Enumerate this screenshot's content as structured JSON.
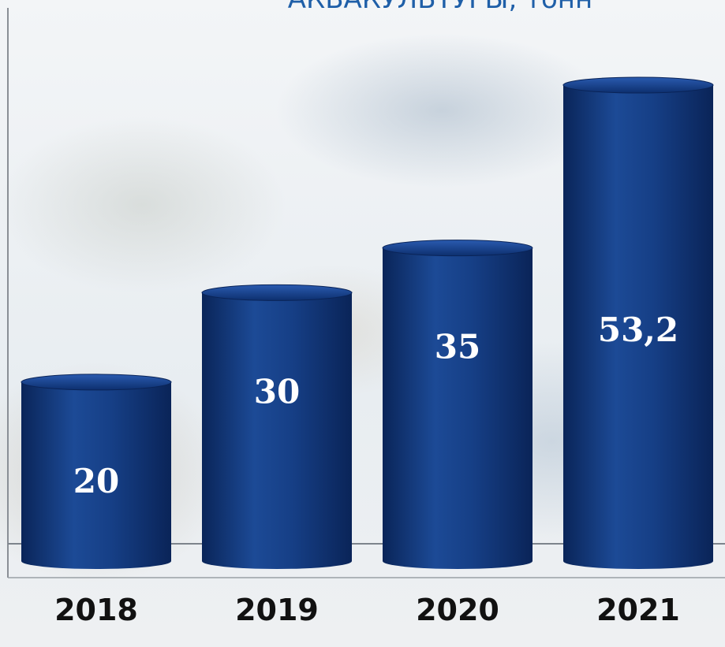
{
  "chart_data": {
    "type": "bar",
    "title": "АКВАКУЛЬТУРЫ, тонн",
    "categories": [
      "2018",
      "2019",
      "2020",
      "2021"
    ],
    "values": [
      20,
      30,
      35,
      53.2
    ],
    "value_labels": [
      "20",
      "30",
      "35",
      "53,2"
    ],
    "ylim": [
      0,
      55
    ],
    "grid": false,
    "legend": "none",
    "bar_style": "cylinder",
    "colors": {
      "bar": "#0d2f6e",
      "bar_light": "#1f4d9c",
      "title": "#1f5fa8",
      "labels": "#111111"
    }
  }
}
